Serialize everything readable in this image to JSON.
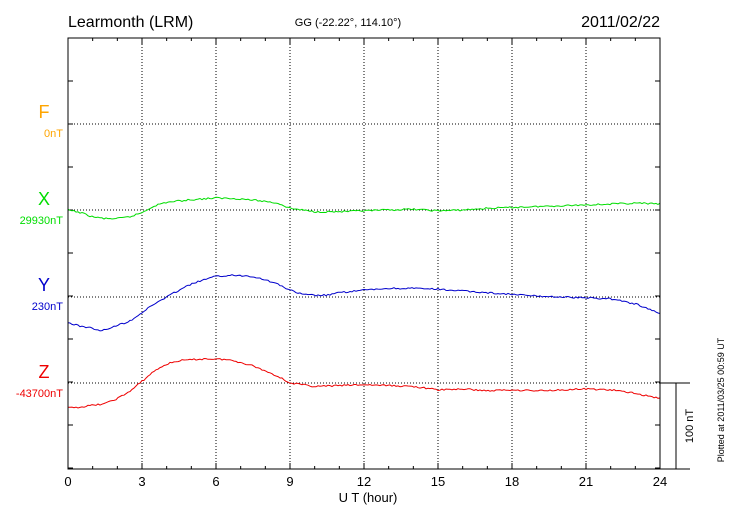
{
  "header": {
    "station": "Learmonth (LRM)",
    "coords": "GG (-22.22°, 114.10°)",
    "date": "2011/02/22"
  },
  "side_note": "Plotted at 2011/03/25 00:59 UT",
  "chart_data": {
    "type": "line",
    "xlabel": "U T (hour)",
    "xlim": [
      0,
      24
    ],
    "xticks": [
      "0",
      "3",
      "6",
      "9",
      "12",
      "15",
      "18",
      "21",
      "24"
    ],
    "scale_bar_label": "100 nT",
    "colors": {
      "F": "#ffa500",
      "X": "#00dd00",
      "Y": "#0000cc",
      "Z": "#ee0000"
    },
    "series": [
      {
        "name": "F",
        "baseline_label": "0nT",
        "x": [],
        "y": []
      },
      {
        "name": "X",
        "baseline_label": "29930nT",
        "x": [
          0,
          0.5,
          1,
          1.5,
          2,
          2.5,
          3,
          3.5,
          4,
          5,
          6,
          7,
          8,
          8.5,
          9,
          10,
          11,
          12,
          13,
          14,
          15,
          16,
          17,
          18,
          19,
          20,
          21,
          22,
          23,
          24
        ],
        "y": [
          0,
          -3,
          -8,
          -10,
          -10,
          -8,
          -3,
          5,
          9,
          12,
          14,
          13,
          10,
          8,
          2,
          -2,
          -2,
          -1,
          0,
          1,
          -1,
          0,
          2,
          3,
          4,
          5,
          6,
          7,
          8,
          7
        ]
      },
      {
        "name": "Y",
        "baseline_label": "230nT",
        "x": [
          0,
          0.5,
          1,
          1.3,
          2,
          2.5,
          3,
          3.5,
          4,
          4.5,
          5,
          5.5,
          6,
          6.5,
          7,
          7.5,
          8,
          8.5,
          9,
          9.5,
          10,
          10.5,
          11,
          12,
          13,
          14,
          15,
          16,
          17,
          18,
          19,
          20,
          21,
          22,
          23,
          24
        ],
        "y": [
          -30,
          -34,
          -36,
          -40,
          -33,
          -28,
          -18,
          -8,
          0,
          8,
          15,
          20,
          24,
          25,
          25,
          24,
          20,
          15,
          8,
          3,
          2,
          2,
          5,
          8,
          10,
          10,
          9,
          7,
          5,
          3,
          1,
          0,
          -1,
          -2,
          -8,
          -19
        ]
      },
      {
        "name": "Z",
        "baseline_label": "-43700nT",
        "x": [
          0,
          0.5,
          1,
          1.5,
          2,
          2.5,
          3,
          3.5,
          4,
          4.5,
          5,
          5.5,
          6,
          6.5,
          7,
          7.5,
          8,
          8.5,
          9,
          10,
          11,
          12,
          13,
          14,
          15,
          16,
          17,
          18,
          19,
          20,
          21,
          22,
          23,
          24
        ],
        "y": [
          -29,
          -28,
          -26,
          -24,
          -18,
          -10,
          2,
          14,
          22,
          26,
          27,
          28,
          28,
          27,
          24,
          20,
          14,
          8,
          0,
          -4,
          -3,
          -2,
          -3,
          -4,
          -8,
          -7,
          -9,
          -8,
          -9,
          -8,
          -7,
          -8,
          -12,
          -18
        ]
      }
    ]
  }
}
